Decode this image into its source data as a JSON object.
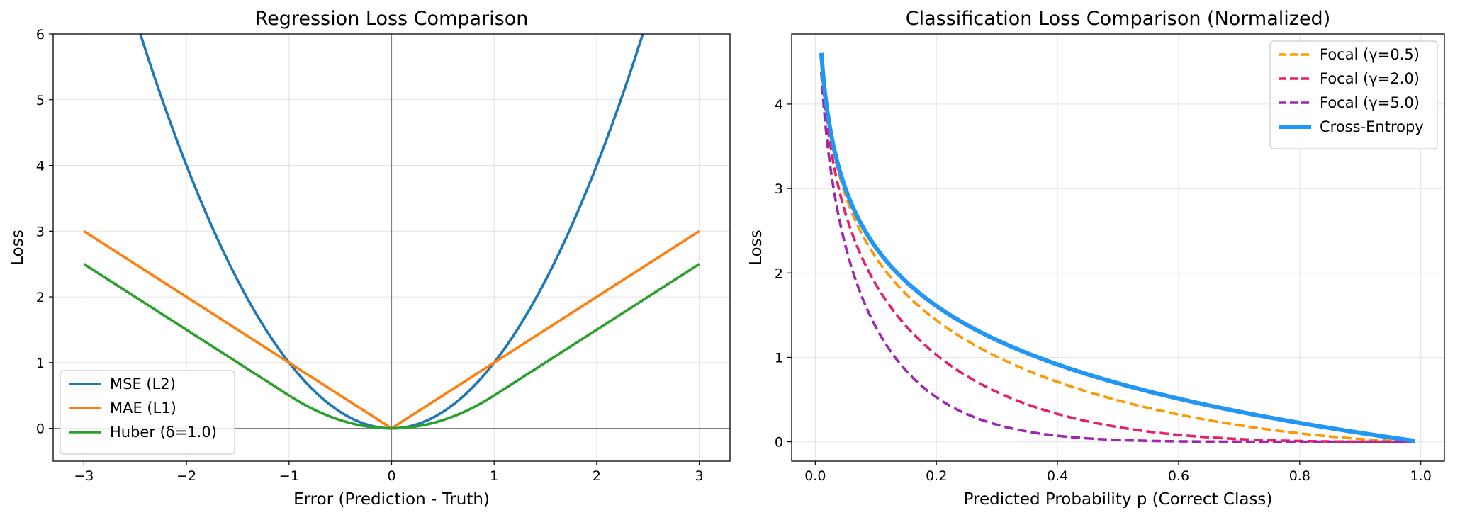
{
  "chart_data": [
    {
      "type": "line",
      "title": "Regression Loss Comparison",
      "xlabel": "Error (Prediction - Truth)",
      "ylabel": "Loss",
      "xlim": [
        -3.3,
        3.3
      ],
      "ylim": [
        -0.5,
        6
      ],
      "xticks": [
        -3,
        -2,
        -1,
        0,
        1,
        2,
        3
      ],
      "xtick_labels": [
        "−3",
        "−2",
        "−1",
        "0",
        "1",
        "2",
        "3"
      ],
      "yticks": [
        0,
        1,
        2,
        3,
        4,
        5,
        6
      ],
      "ytick_labels": [
        "0",
        "1",
        "2",
        "3",
        "4",
        "5",
        "6"
      ],
      "grid": true,
      "reference_lines": {
        "x0": true,
        "y0": true
      },
      "legend_position": "lower-left",
      "x_range": [
        -3,
        3
      ],
      "series": [
        {
          "name": "MSE (L2)",
          "function": "mse",
          "color": "#1f77b4",
          "style": "solid"
        },
        {
          "name": "MAE (L1)",
          "function": "mae",
          "color": "#ff7f0e",
          "style": "solid"
        },
        {
          "name": "Huber (δ=1.0)",
          "function": "huber",
          "delta": 1.0,
          "color": "#2ca02c",
          "style": "solid"
        }
      ]
    },
    {
      "type": "line",
      "title": "Classification Loss Comparison (Normalized)",
      "xlabel": "Predicted Probability p (Correct Class)",
      "ylabel": "Loss",
      "xlim": [
        -0.039,
        1.039
      ],
      "ylim": [
        -0.23,
        4.83
      ],
      "xticks": [
        0.0,
        0.2,
        0.4,
        0.6,
        0.8,
        1.0
      ],
      "xtick_labels": [
        "0.0",
        "0.2",
        "0.4",
        "0.6",
        "0.8",
        "1.0"
      ],
      "yticks": [
        0,
        1,
        2,
        3,
        4
      ],
      "ytick_labels": [
        "0",
        "1",
        "2",
        "3",
        "4"
      ],
      "grid": true,
      "legend_position": "upper-right",
      "x_range": [
        0.01,
        0.99
      ],
      "series": [
        {
          "name": "Focal (γ=0.5)",
          "function": "focal",
          "gamma": 0.5,
          "color": "#ff9800",
          "style": "dashed"
        },
        {
          "name": "Focal (γ=2.0)",
          "function": "focal",
          "gamma": 2.0,
          "color": "#e91e63",
          "style": "dashed"
        },
        {
          "name": "Focal (γ=5.0)",
          "function": "focal",
          "gamma": 5.0,
          "color": "#9c27b0",
          "style": "dashed"
        },
        {
          "name": "Cross-Entropy",
          "function": "ce",
          "color": "#2196f3",
          "style": "solid-thick"
        }
      ]
    }
  ]
}
